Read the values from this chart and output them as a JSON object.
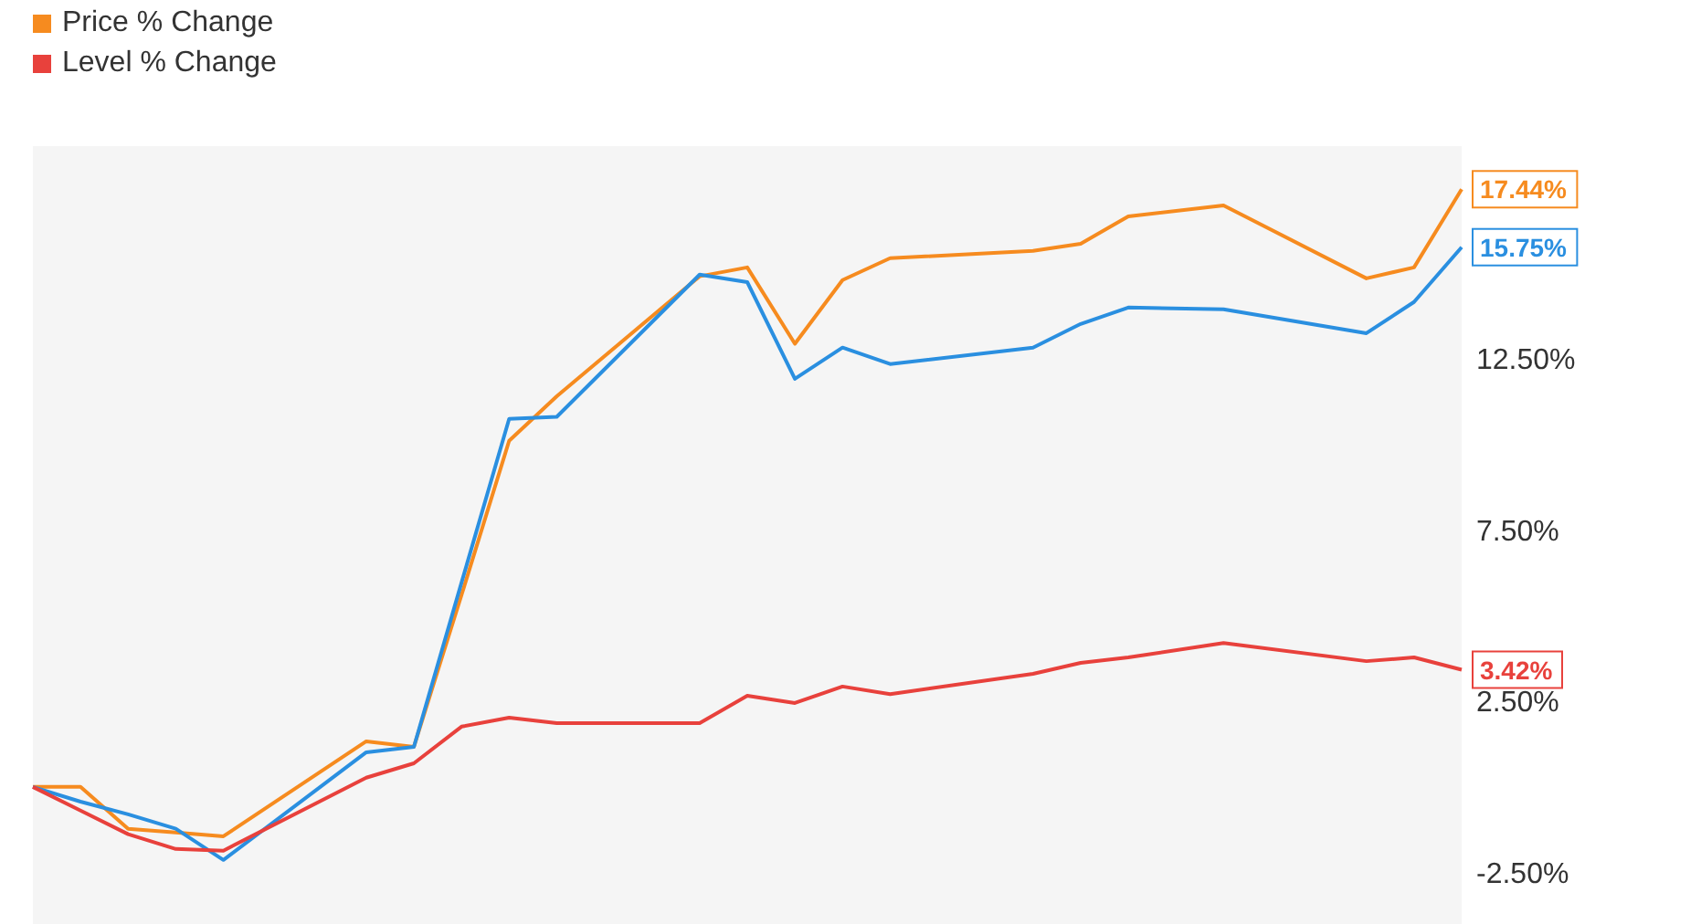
{
  "chart_data": {
    "type": "line",
    "categories": [
      null,
      null,
      null,
      null,
      null,
      null,
      null,
      null,
      null,
      null,
      null,
      null,
      null,
      null,
      null,
      null,
      null,
      null,
      null,
      null,
      null,
      null,
      null,
      null,
      null,
      null,
      null,
      null,
      null,
      null,
      null
    ],
    "series": [
      {
        "name": "Price % Change",
        "color": "#f68b1f",
        "values": [
          0,
          0,
          -1.22,
          -1.33,
          -1.44,
          null,
          null,
          1.33,
          1.17,
          5.6,
          10.1,
          11.4,
          null,
          null,
          14.9,
          15.16,
          12.93,
          14.79,
          15.43,
          null,
          null,
          15.64,
          15.85,
          16.65,
          null,
          16.97,
          null,
          null,
          14.84,
          15.16,
          17.44
        ],
        "value_labels": [
          null,
          null,
          null,
          null,
          null,
          null,
          null,
          null,
          null,
          null,
          null,
          null,
          null,
          null,
          null,
          null,
          null,
          null,
          null,
          null,
          null,
          null,
          null,
          null,
          null,
          null,
          null,
          null,
          null,
          null,
          "17.44%"
        ]
      },
      {
        "color": "#2a8fe0",
        "values": [
          0,
          -0.43,
          -0.8,
          -1.22,
          -2.13,
          null,
          null,
          1.01,
          1.17,
          5.96,
          10.74,
          10.8,
          null,
          null,
          14.95,
          14.73,
          11.91,
          12.82,
          12.34,
          null,
          null,
          12.82,
          13.51,
          13.99,
          null,
          13.94,
          null,
          null,
          13.24,
          14.15,
          15.75
        ],
        "value_labels": [
          null,
          null,
          null,
          null,
          null,
          null,
          null,
          null,
          null,
          null,
          null,
          null,
          null,
          null,
          null,
          null,
          null,
          null,
          null,
          null,
          null,
          null,
          null,
          null,
          null,
          null,
          null,
          null,
          null,
          null,
          "15.75%"
        ]
      },
      {
        "name": "Level % Change",
        "color": "#e8413c",
        "values": [
          0,
          -0.69,
          -1.38,
          -1.81,
          -1.86,
          null,
          null,
          0.27,
          0.69,
          1.76,
          2.02,
          1.86,
          null,
          null,
          1.86,
          2.66,
          2.45,
          2.93,
          2.71,
          null,
          null,
          3.3,
          3.62,
          3.78,
          null,
          4.2,
          null,
          null,
          3.67,
          3.78,
          3.42
        ],
        "value_labels": [
          null,
          null,
          null,
          null,
          null,
          null,
          null,
          null,
          null,
          null,
          null,
          null,
          null,
          null,
          null,
          null,
          null,
          null,
          null,
          null,
          null,
          null,
          null,
          null,
          null,
          null,
          null,
          null,
          null,
          null,
          "3.42%"
        ]
      }
    ],
    "ylim": [
      -4,
      18.7
    ],
    "yticks": [
      {
        "value": -2.5,
        "label": "-2.50%"
      },
      {
        "value": 2.5,
        "label": "2.50%"
      },
      {
        "value": 7.5,
        "label": "7.50%"
      },
      {
        "value": 12.5,
        "label": "12.50%"
      }
    ],
    "tick_labels": "y",
    "legend": "top left",
    "marker": "none",
    "line_style": "solid"
  }
}
